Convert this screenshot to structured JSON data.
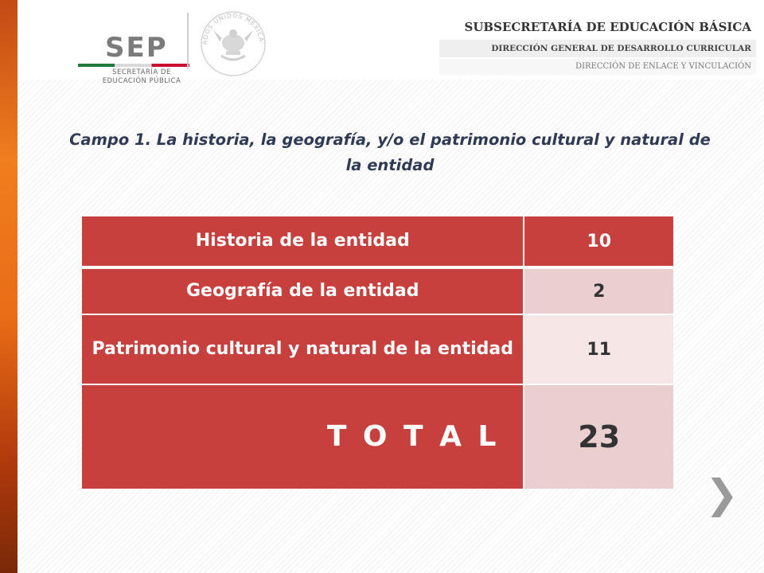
{
  "header": {
    "sep_logo_text": "SEP",
    "sep_subtitle": "SECRETARÍA DE EDUCACIÓN PÚBLICA",
    "seal_text": "ESTADOS UNIDOS MEXICANOS",
    "agency_main": "SUBSECRETARÍA DE EDUCACIÓN BÁSICA",
    "agency_line2": "DIRECCIÓN GENERAL DE DESARROLLO CURRICULAR",
    "agency_line3": "DIRECCIÓN DE ENLACE Y VINCULACIÓN"
  },
  "title": "Campo 1. La historia, la geografía, y/o el patrimonio cultural y natural de la entidad",
  "table": {
    "rows": [
      {
        "label": "Historia de la entidad",
        "value": "10"
      },
      {
        "label": "Geografía de la entidad",
        "value": "2"
      },
      {
        "label": "Patrimonio cultural  y natural de la entidad",
        "value": "11"
      },
      {
        "label": "T O T A L",
        "value": "23"
      }
    ]
  },
  "nav": {
    "next_glyph": "❯"
  },
  "colors": {
    "accent_red": "#c8403d",
    "light_pink": "#ebcfcf",
    "pale_pink": "#f6e6e6",
    "title_navy": "#2f3b55",
    "side_orange": "#f07d1e"
  }
}
